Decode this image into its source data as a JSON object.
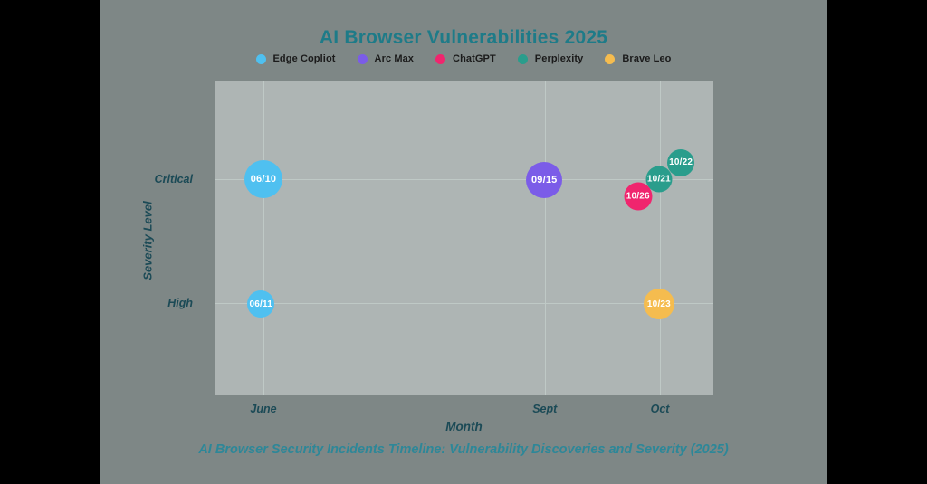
{
  "title": "AI Browser Vulnerabilities 2025",
  "caption": "AI Browser Security Incidents Timeline: Vulnerability Discoveries and Severity (2025)",
  "colors": {
    "stage_bg": "#7e8786",
    "panel_bg": "#aeb5b4",
    "gridline": "#bfc9c6",
    "title": "#1e7b88",
    "axis_text": "#1b4a56",
    "caption": "#2d8798",
    "point_label": "#ffffff"
  },
  "legend": [
    {
      "name": "Edge Copliot",
      "color": "#4fc0f0"
    },
    {
      "name": "Arc Max",
      "color": "#7b5ce8"
    },
    {
      "name": "ChatGPT",
      "color": "#f0256e"
    },
    {
      "name": "Perplexity",
      "color": "#2a9d8c"
    },
    {
      "name": "Brave Leo",
      "color": "#f5bc4f"
    }
  ],
  "chart_data": {
    "type": "scatter",
    "title": "AI Browser Vulnerabilities 2025",
    "xlabel": "Month",
    "ylabel": "Severity Level",
    "grid": true,
    "legend_position": "top",
    "x_ticks": [
      {
        "label": "June",
        "pct": 9.8
      },
      {
        "label": "Sept",
        "pct": 66.2
      },
      {
        "label": "Oct",
        "pct": 89.3
      }
    ],
    "y_ticks": [
      {
        "label": "Critical",
        "pct": 31.1
      },
      {
        "label": "High",
        "pct": 70.6
      }
    ],
    "series": [
      {
        "name": "Edge Copliot",
        "dates": [
          "06/10",
          "06/11"
        ],
        "severities": [
          "Critical",
          "High"
        ]
      },
      {
        "name": "Arc Max",
        "dates": [
          "09/15"
        ],
        "severities": [
          "Critical"
        ]
      },
      {
        "name": "ChatGPT",
        "dates": [
          "10/26"
        ],
        "severities": [
          "Critical"
        ]
      },
      {
        "name": "Perplexity",
        "dates": [
          "10/21",
          "10/22"
        ],
        "severities": [
          "Critical",
          "Critical"
        ]
      },
      {
        "name": "Brave Leo",
        "dates": [
          "10/23"
        ],
        "severities": [
          "High"
        ]
      }
    ],
    "points": [
      {
        "label": "06/10",
        "series": "Edge Copliot",
        "month": "June",
        "severity": "Critical",
        "x_pct": 9.8,
        "y_pct": 31.1,
        "d": 42
      },
      {
        "label": "06/11",
        "series": "Edge Copliot",
        "month": "June",
        "severity": "High",
        "x_pct": 9.3,
        "y_pct": 70.9,
        "d": 30
      },
      {
        "label": "09/15",
        "series": "Arc Max",
        "month": "Sept",
        "severity": "Critical",
        "x_pct": 66.1,
        "y_pct": 31.4,
        "d": 40
      },
      {
        "label": "10/22",
        "series": "Perplexity",
        "month": "Oct",
        "severity": "Critical",
        "x_pct": 93.5,
        "y_pct": 25.9,
        "d": 30
      },
      {
        "label": "10/21",
        "series": "Perplexity",
        "month": "Oct",
        "severity": "Critical",
        "x_pct": 89.1,
        "y_pct": 31.1,
        "d": 29
      },
      {
        "label": "10/26",
        "series": "ChatGPT",
        "month": "Oct",
        "severity": "Critical",
        "x_pct": 84.9,
        "y_pct": 36.6,
        "d": 31
      },
      {
        "label": "10/23",
        "series": "Brave Leo",
        "month": "Oct",
        "severity": "High",
        "x_pct": 89.1,
        "y_pct": 70.9,
        "d": 34
      }
    ]
  }
}
